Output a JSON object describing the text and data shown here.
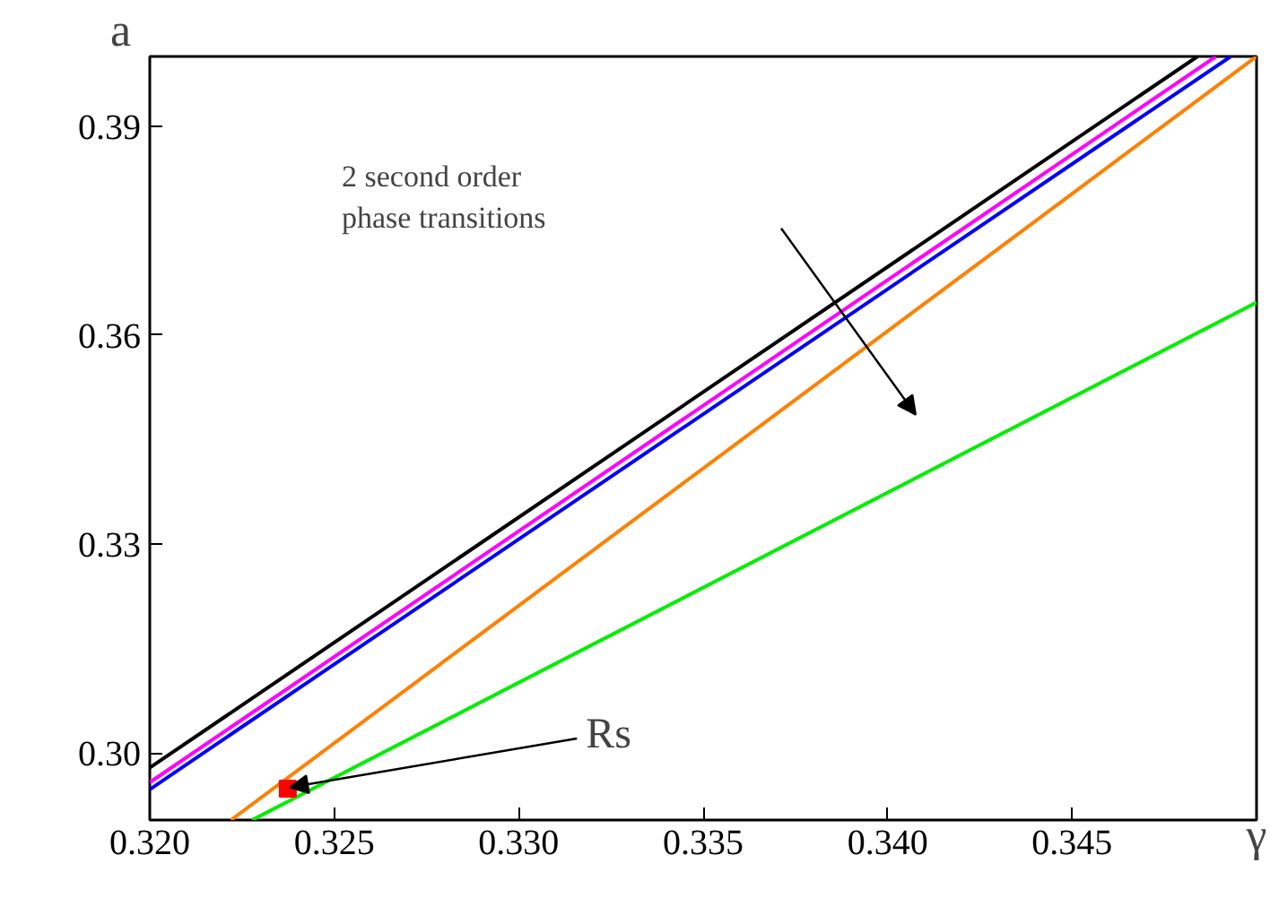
{
  "chart_data": {
    "type": "line",
    "xlabel": "γ",
    "ylabel": "a",
    "xlim": [
      0.32,
      0.35
    ],
    "ylim": [
      0.2904,
      0.4
    ],
    "xticks": [
      {
        "value": 0.32,
        "label": "0.320"
      },
      {
        "value": 0.325,
        "label": "0.325"
      },
      {
        "value": 0.33,
        "label": "0.330"
      },
      {
        "value": 0.335,
        "label": "0.335"
      },
      {
        "value": 0.34,
        "label": "0.340"
      },
      {
        "value": 0.345,
        "label": "0.345"
      }
    ],
    "yticks": [
      {
        "value": 0.3,
        "label": "0.30"
      },
      0.33,
      0.36,
      0.39
    ],
    "grid": false,
    "series": [
      {
        "color": "#000000",
        "x": [
          0.32,
          0.3484
        ],
        "values": [
          0.2979,
          0.4
        ]
      },
      {
        "color": "#ff00ff",
        "x": [
          0.32,
          0.3489
        ],
        "values": [
          0.2958,
          0.4
        ]
      },
      {
        "color": "#0000ff",
        "x": [
          0.32,
          0.3493
        ],
        "values": [
          0.2948,
          0.4
        ]
      },
      {
        "color": "#ff8000",
        "x": [
          0.3222,
          0.35
        ],
        "values": [
          0.2904,
          0.4
        ]
      },
      {
        "color": "#00ee00",
        "x": [
          0.32277,
          0.35
        ],
        "values": [
          0.2904,
          0.3647
        ]
      },
      {
        "type": "scatter",
        "marker": "square",
        "color": "#ff0000",
        "x": [
          0.32374
        ],
        "values": [
          0.2949
        ]
      }
    ],
    "annotations": [
      "2 second order\nphase transitions",
      {
        "text": "Rs",
        "x": 0.3238,
        "y": 0.2951
      }
    ]
  }
}
